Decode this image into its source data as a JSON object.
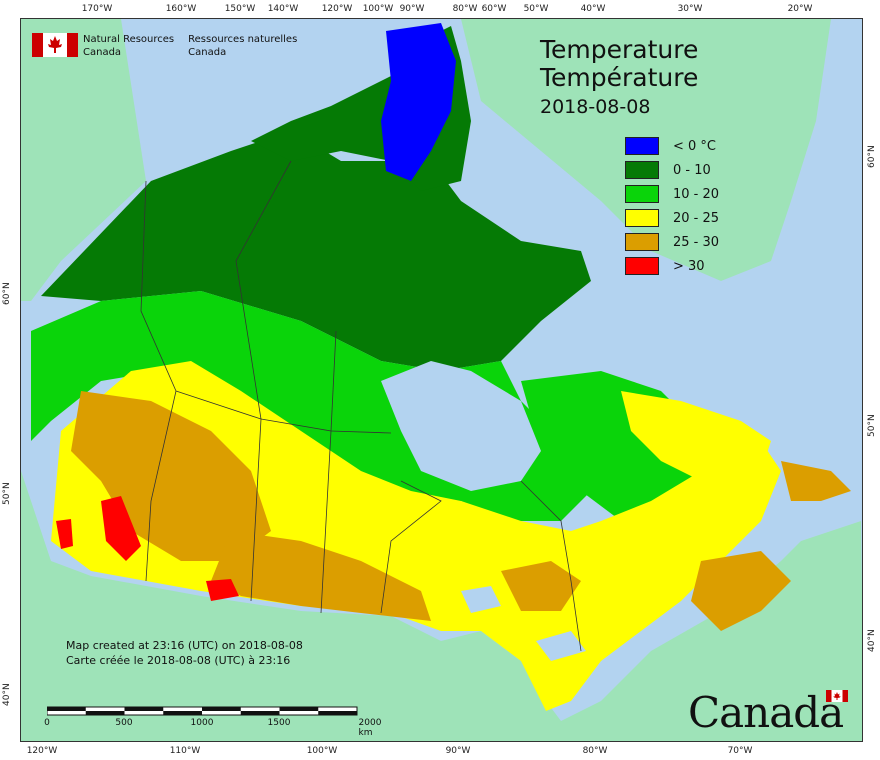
{
  "header": {
    "org_en_line1": "Natural Resources",
    "org_en_line2": "Canada",
    "org_fr_line1": "Ressources naturelles",
    "org_fr_line2": "Canada"
  },
  "title": {
    "en": "Temperature",
    "fr": "Température",
    "date": "2018-08-08"
  },
  "legend": [
    {
      "label": "< 0 °C",
      "color": "#0000ff"
    },
    {
      "label": "0 - 10",
      "color": "#057a05"
    },
    {
      "label": "10 - 20",
      "color": "#0ad40a"
    },
    {
      "label": "20 - 25",
      "color": "#ffff00"
    },
    {
      "label": "25 - 30",
      "color": "#db9e00"
    },
    {
      "label": "> 30",
      "color": "#ff0000"
    }
  ],
  "credits": {
    "en": "Map created at 23:16 (UTC) on 2018-08-08",
    "fr": "Carte créée le 2018-08-08 (UTC) à 23:16"
  },
  "scale_bar": {
    "labels": [
      "0",
      "500",
      "1000",
      "1500",
      "2000  km"
    ]
  },
  "graticule": {
    "top": [
      "170°W",
      "160°W",
      "150°W",
      "140°W",
      "120°W",
      "100°W",
      "90°W",
      "80°W",
      "60°W",
      "50°W",
      "40°W",
      "30°W",
      "20°W"
    ],
    "bottom": [
      "120°W",
      "110°W",
      "100°W",
      "90°W",
      "80°W",
      "70°W"
    ],
    "left": [
      "60°N",
      "50°N",
      "40°N"
    ],
    "right": [
      "60°N",
      "50°N",
      "40°N"
    ]
  },
  "wordmark": "Canada",
  "colors": {
    "ocean": "#b3d3f0",
    "foreign_land": "#9ee3b8",
    "boundary": "#333333"
  }
}
